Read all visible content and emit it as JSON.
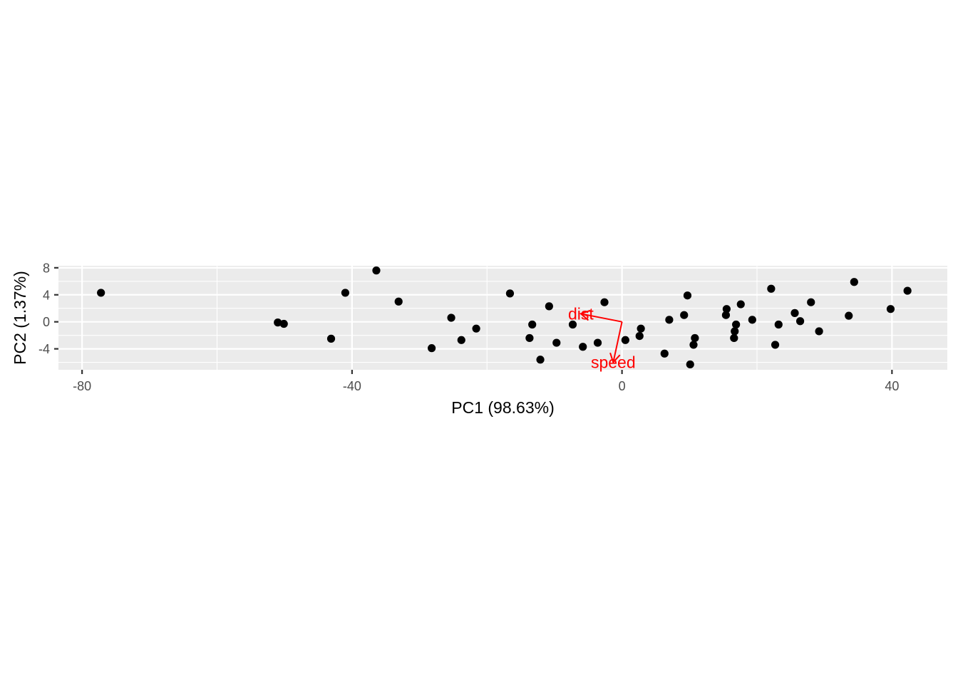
{
  "chart_data": {
    "type": "scatter",
    "xlabel": "PC1 (98.63%)",
    "ylabel": "PC2 (1.37%)",
    "xlim": [
      -83.5,
      48.2
    ],
    "ylim": [
      -7.1,
      8.3
    ],
    "x_ticks": [
      -80,
      -40,
      0,
      40
    ],
    "x_tick_labels": [
      "-80",
      "-40",
      "0",
      "40"
    ],
    "y_ticks": [
      -4,
      0,
      4,
      8
    ],
    "y_tick_labels": [
      "-4",
      "0",
      "4",
      "8"
    ],
    "grid": true,
    "legend": "none",
    "point_color": "#000000",
    "panel_color": "#ebebeb",
    "loading_color": "#ff0000",
    "points": [
      {
        "x": -77.2,
        "y": 4.3
      },
      {
        "x": -51.0,
        "y": -0.1
      },
      {
        "x": -50.1,
        "y": -0.3
      },
      {
        "x": -43.1,
        "y": -2.5
      },
      {
        "x": -41.0,
        "y": 4.3
      },
      {
        "x": -36.4,
        "y": 7.6
      },
      {
        "x": -33.1,
        "y": 3.0
      },
      {
        "x": -28.2,
        "y": -3.9
      },
      {
        "x": -25.3,
        "y": 0.6
      },
      {
        "x": -23.8,
        "y": -2.7
      },
      {
        "x": -21.6,
        "y": -1.0
      },
      {
        "x": -16.6,
        "y": 4.2
      },
      {
        "x": -13.7,
        "y": -2.4
      },
      {
        "x": -13.3,
        "y": -0.4
      },
      {
        "x": -12.1,
        "y": -5.6
      },
      {
        "x": -10.8,
        "y": 2.3
      },
      {
        "x": -9.7,
        "y": -3.1
      },
      {
        "x": -7.3,
        "y": -0.4
      },
      {
        "x": -5.8,
        "y": -3.7
      },
      {
        "x": -3.6,
        "y": -3.1
      },
      {
        "x": -2.6,
        "y": 2.9
      },
      {
        "x": 0.5,
        "y": -2.7
      },
      {
        "x": 2.6,
        "y": -2.1
      },
      {
        "x": 2.8,
        "y": -1.0
      },
      {
        "x": 6.3,
        "y": -4.7
      },
      {
        "x": 7.0,
        "y": 0.3
      },
      {
        "x": 9.2,
        "y": 1.0
      },
      {
        "x": 9.7,
        "y": 3.9
      },
      {
        "x": 10.1,
        "y": -6.3
      },
      {
        "x": 10.6,
        "y": -3.4
      },
      {
        "x": 10.8,
        "y": -2.4
      },
      {
        "x": 15.4,
        "y": 1.0
      },
      {
        "x": 15.5,
        "y": 1.9
      },
      {
        "x": 16.6,
        "y": -2.4
      },
      {
        "x": 16.7,
        "y": -1.4
      },
      {
        "x": 16.9,
        "y": -0.4
      },
      {
        "x": 17.6,
        "y": 2.6
      },
      {
        "x": 19.3,
        "y": 0.3
      },
      {
        "x": 22.1,
        "y": 4.9
      },
      {
        "x": 22.7,
        "y": -3.4
      },
      {
        "x": 23.2,
        "y": -0.4
      },
      {
        "x": 25.6,
        "y": 1.3
      },
      {
        "x": 26.4,
        "y": 0.1
      },
      {
        "x": 28.0,
        "y": 2.9
      },
      {
        "x": 29.2,
        "y": -1.4
      },
      {
        "x": 33.6,
        "y": 0.9
      },
      {
        "x": 34.4,
        "y": 5.9
      },
      {
        "x": 39.8,
        "y": 1.9
      },
      {
        "x": 42.3,
        "y": 4.6
      }
    ],
    "loadings": [
      {
        "name": "dist",
        "x": -6.1,
        "y": 1.2
      },
      {
        "name": "speed",
        "x": -1.3,
        "y": -6.0
      }
    ]
  }
}
